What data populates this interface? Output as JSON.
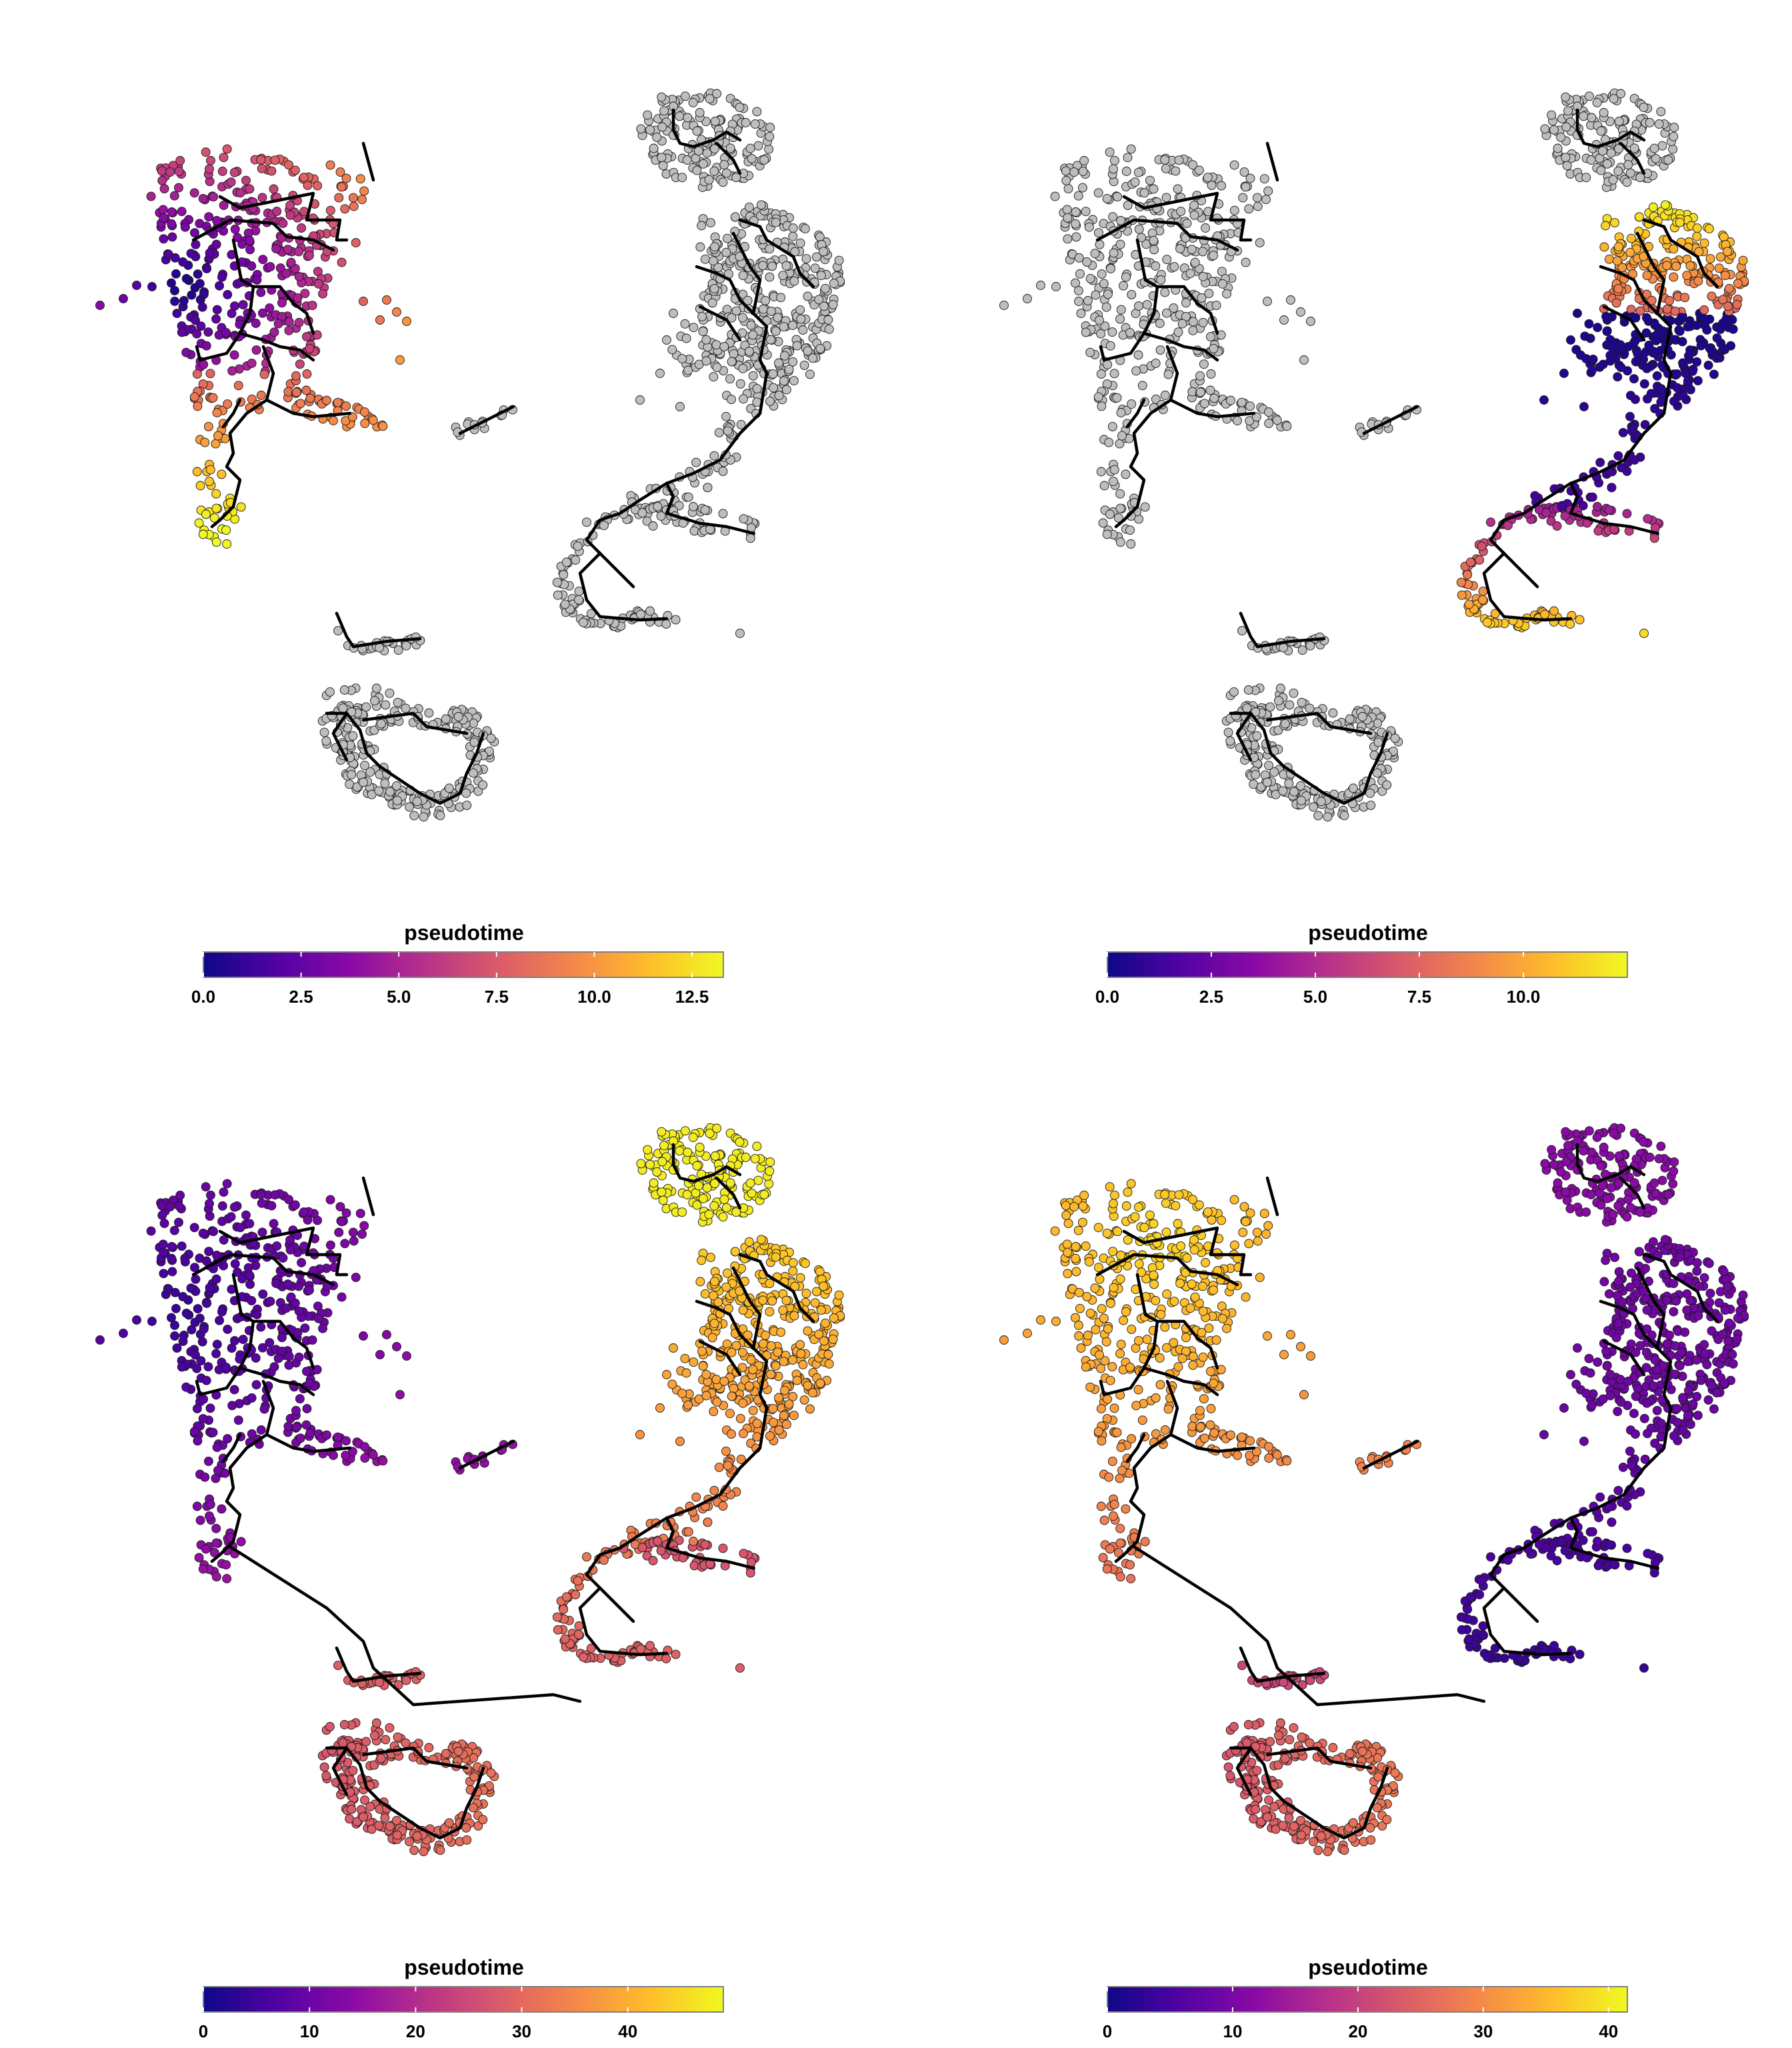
{
  "colors": {
    "background": "#ffffff",
    "not_assigned_cells": "#bebebe",
    "trajectory": "#000000",
    "cell_outline": "#1a1a1a",
    "colormap": "plasma",
    "colormap_stops": [
      "#0d0887",
      "#5302a3",
      "#8b0aa5",
      "#b83289",
      "#db5c68",
      "#f48849",
      "#febd2a",
      "#f0f921"
    ]
  },
  "chart_data": [
    {
      "type": "scatter",
      "subtype": "umap-trajectory",
      "panel": "top-left",
      "colored_lineage": "left",
      "legend": {
        "title": "pseudotime",
        "ticks": [
          "0.0",
          "2.5",
          "5.0",
          "7.5",
          "10.0",
          "12.5"
        ],
        "range": [
          0,
          13.3
        ],
        "position": "bottom"
      }
    },
    {
      "type": "scatter",
      "subtype": "umap-trajectory",
      "panel": "top-right",
      "colored_lineage": "right",
      "legend": {
        "title": "pseudotime",
        "ticks": [
          "0.0",
          "2.5",
          "5.0",
          "7.5",
          "10.0"
        ],
        "range": [
          0,
          12.5
        ],
        "position": "bottom"
      }
    },
    {
      "type": "scatter",
      "subtype": "umap-trajectory",
      "panel": "bottom-left",
      "colored_lineage": "all",
      "legend": {
        "title": "pseudotime",
        "ticks": [
          "0",
          "10",
          "20",
          "30",
          "40"
        ],
        "range": [
          0,
          49
        ],
        "position": "bottom"
      }
    },
    {
      "type": "scatter",
      "subtype": "umap-trajectory",
      "panel": "bottom-right",
      "colored_lineage": "all",
      "legend": {
        "title": "pseudotime",
        "ticks": [
          "0",
          "10",
          "20",
          "30",
          "40"
        ],
        "range": [
          0,
          41.5
        ],
        "position": "bottom"
      }
    }
  ]
}
